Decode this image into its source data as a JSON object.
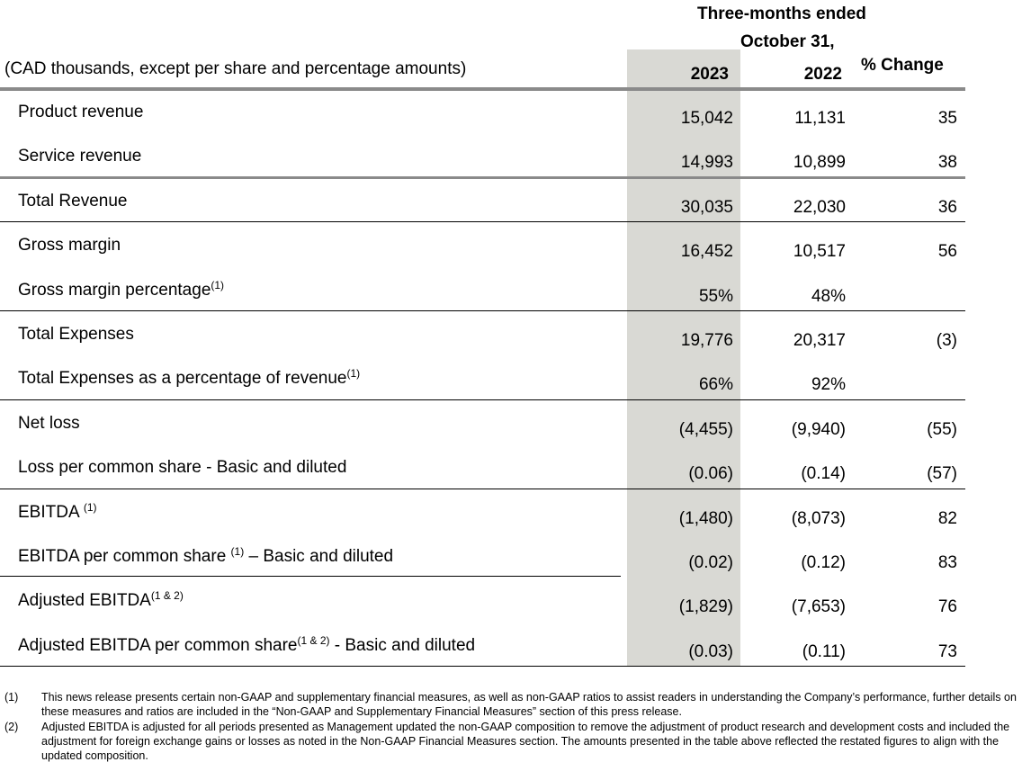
{
  "header": {
    "period_line1": "Three-months ended",
    "period_line2": "October 31,",
    "units_note": "(CAD thousands, except per share and percentage amounts)",
    "col_2023": "2023",
    "col_2022": "2022",
    "col_change": "% Change"
  },
  "rows": [
    {
      "label": "Product revenue",
      "sup": "",
      "suffix": "",
      "v2023": "15,042",
      "v2022": "11,131",
      "change": "35"
    },
    {
      "label": "Service revenue",
      "sup": "",
      "suffix": "",
      "v2023": "14,993",
      "v2022": "10,899",
      "change": "38"
    },
    {
      "label": "Total Revenue",
      "sup": "",
      "suffix": "",
      "v2023": "30,035",
      "v2022": "22,030",
      "change": "36"
    },
    {
      "label": "Gross margin",
      "sup": "",
      "suffix": "",
      "v2023": "16,452",
      "v2022": "10,517",
      "change": "56"
    },
    {
      "label": "Gross margin percentage",
      "sup": "(1)",
      "suffix": "",
      "v2023": "55%",
      "v2022": "48%",
      "change": ""
    },
    {
      "label": "Total Expenses",
      "sup": "",
      "suffix": "",
      "v2023": "19,776",
      "v2022": "20,317",
      "change": "(3)"
    },
    {
      "label": "Total Expenses as a percentage of revenue",
      "sup": "(1)",
      "suffix": "",
      "v2023": "66%",
      "v2022": "92%",
      "change": ""
    },
    {
      "label": "Net loss",
      "sup": "",
      "suffix": "",
      "v2023": "(4,455)",
      "v2022": "(9,940)",
      "change": "(55)"
    },
    {
      "label": "Loss per common share - Basic and diluted",
      "sup": "",
      "suffix": "",
      "v2023": "(0.06)",
      "v2022": "(0.14)",
      "change": "(57)"
    },
    {
      "label": "EBITDA ",
      "sup": "(1)",
      "suffix": "",
      "v2023": "(1,480)",
      "v2022": "(8,073)",
      "change": "82"
    },
    {
      "label": "EBITDA per common share ",
      "sup": "(1)",
      "suffix": " – Basic and diluted",
      "v2023": "(0.02)",
      "v2022": "(0.12)",
      "change": "83"
    },
    {
      "label": "Adjusted EBITDA",
      "sup": "(1 & 2)",
      "suffix": "",
      "v2023": "(1,829)",
      "v2022": "(7,653)",
      "change": "76"
    },
    {
      "label": "Adjusted EBITDA per common share",
      "sup": "(1 & 2)",
      "suffix": " -  Basic and diluted",
      "v2023": "(0.03)",
      "v2022": "(0.11)",
      "change": "73"
    }
  ],
  "footnotes": [
    {
      "num": "(1)",
      "text": "This news release presents certain non-GAAP and supplementary financial measures, as well as non-GAAP ratios to assist readers in understanding the Company’s performance, further details on these measures and ratios are included in the “Non-GAAP and Supplementary Financial Measures” section of this press release."
    },
    {
      "num": "(2)",
      "text": "Adjusted EBITDA is adjusted for all periods presented as Management updated the non-GAAP composition to remove the adjustment of product research and development costs and included the adjustment for foreign exchange gains or losses as noted in the Non-GAAP Financial Measures section. The amounts presented in the table above reflected the restated figures to align with the updated composition."
    }
  ],
  "colors": {
    "shade": "#d9d9d4",
    "rule": "#8a8a8a"
  }
}
